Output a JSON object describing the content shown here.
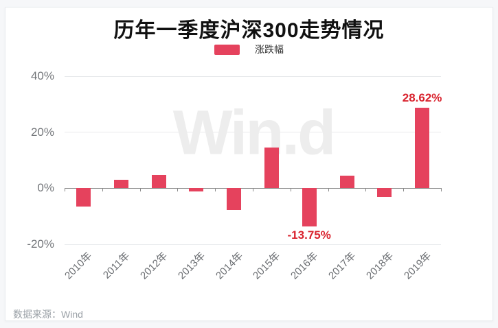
{
  "header": {
    "title": "历年一季度沪深300走势情况"
  },
  "legend": {
    "label": "涨跌幅",
    "swatch_color": "#e5425d"
  },
  "watermark_text": "Win.d",
  "footer": {
    "source_text": "数据来源：Wind"
  },
  "colors": {
    "page_bg": "#f6f7f9",
    "card_bg": "#ffffff",
    "card_border": "#e9ebee",
    "title_text": "#111111",
    "legend_text": "#333333",
    "bar": "#e5425d",
    "data_label": "#d9232e",
    "gridline": "#e8eaec",
    "zero_line": "#8a8a8a",
    "y_axis_text": "#73767a",
    "x_axis_text": "#6b6e72",
    "watermark": "#ededed",
    "footer_text": "#9aa0a6"
  },
  "chart_data": {
    "type": "bar",
    "title": "历年一季度沪深300走势情况",
    "legend_entries": [
      "涨跌幅"
    ],
    "categories": [
      "2010年",
      "2011年",
      "2012年",
      "2013年",
      "2014年",
      "2015年",
      "2016年",
      "2017年",
      "2018年",
      "2019年"
    ],
    "values": [
      -6.5,
      3.0,
      4.7,
      -1.1,
      -7.8,
      14.6,
      -13.75,
      4.6,
      -3.2,
      28.62
    ],
    "unit": "%",
    "xlabel": "",
    "ylabel": "",
    "y_ticks": [
      "40%",
      "20%",
      "0%",
      "-20%"
    ],
    "ylim": [
      -20,
      40
    ],
    "grid": true,
    "legend_position": "top-center",
    "bar_color": "#e5425d",
    "data_labels": [
      {
        "category": "2016年",
        "text": "-13.75%"
      },
      {
        "category": "2019年",
        "text": "28.62%"
      }
    ],
    "source_note": "数据来源：Wind"
  }
}
